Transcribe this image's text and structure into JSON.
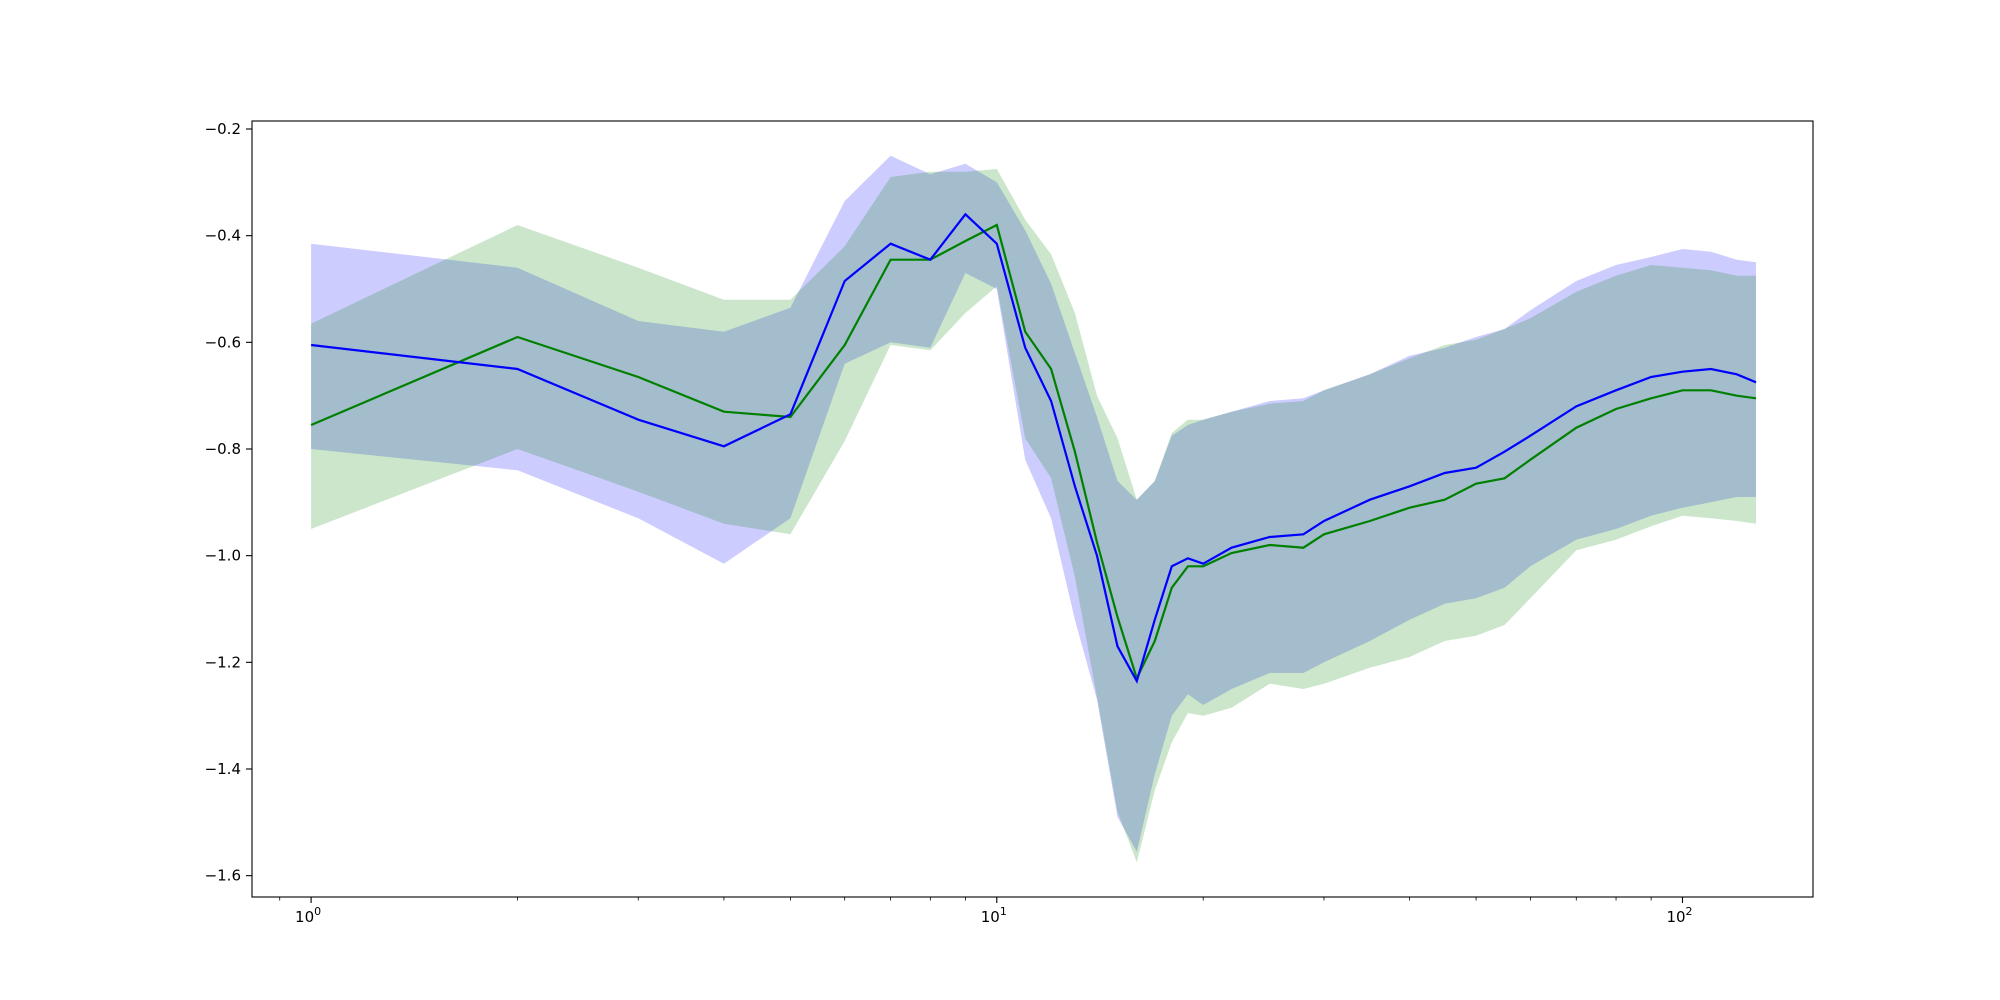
{
  "chart_data": {
    "type": "line",
    "title": "",
    "xlabel": "",
    "ylabel": "",
    "xscale": "log",
    "xlim": [
      0.82,
      155
    ],
    "ylim": [
      -1.64,
      -0.185
    ],
    "grid": false,
    "legend": "none",
    "colors": {
      "blue": "#0000ff",
      "green": "#008000",
      "blue_fill": "#0000ff",
      "green_fill": "#008000",
      "fill_opacity": 0.2
    },
    "x_ticks": [
      {
        "value": 1,
        "base": "10",
        "exp": "0"
      },
      {
        "value": 10,
        "base": "10",
        "exp": "1"
      },
      {
        "value": 100,
        "base": "10",
        "exp": "2"
      }
    ],
    "y_ticks": [
      {
        "value": -0.2,
        "label": "−0.2"
      },
      {
        "value": -0.4,
        "label": "−0.4"
      },
      {
        "value": -0.6,
        "label": "−0.6"
      },
      {
        "value": -0.8,
        "label": "−0.8"
      },
      {
        "value": -1.0,
        "label": "−1.0"
      },
      {
        "value": -1.2,
        "label": "−1.2"
      },
      {
        "value": -1.4,
        "label": "−1.4"
      },
      {
        "value": -1.6,
        "label": "−1.6"
      }
    ],
    "series": [
      {
        "color": "blue",
        "x": [
          1,
          2,
          3,
          4,
          5,
          6,
          7,
          8,
          9,
          10,
          11,
          12,
          13,
          14,
          15,
          16,
          17,
          18,
          19,
          20,
          22,
          25,
          28,
          30,
          35,
          40,
          45,
          50,
          55,
          60,
          70,
          80,
          90,
          100,
          110,
          120,
          128
        ],
        "y": [
          -0.605,
          -0.65,
          -0.745,
          -0.795,
          -0.735,
          -0.485,
          -0.415,
          -0.445,
          -0.36,
          -0.415,
          -0.61,
          -0.71,
          -0.87,
          -1.0,
          -1.17,
          -1.235,
          -1.12,
          -1.02,
          -1.005,
          -1.015,
          -0.985,
          -0.965,
          -0.96,
          -0.935,
          -0.895,
          -0.87,
          -0.845,
          -0.835,
          -0.805,
          -0.775,
          -0.72,
          -0.69,
          -0.665,
          -0.655,
          -0.65,
          -0.66,
          -0.675
        ],
        "lower": [
          -0.8,
          -0.84,
          -0.93,
          -1.015,
          -0.93,
          -0.64,
          -0.6,
          -0.61,
          -0.47,
          -0.5,
          -0.82,
          -0.93,
          -1.12,
          -1.27,
          -1.49,
          -1.555,
          -1.41,
          -1.3,
          -1.26,
          -1.28,
          -1.25,
          -1.22,
          -1.22,
          -1.2,
          -1.16,
          -1.12,
          -1.09,
          -1.08,
          -1.06,
          -1.02,
          -0.97,
          -0.95,
          -0.925,
          -0.91,
          -0.9,
          -0.89,
          -0.89
        ],
        "upper": [
          -0.415,
          -0.46,
          -0.56,
          -0.58,
          -0.535,
          -0.335,
          -0.25,
          -0.285,
          -0.265,
          -0.3,
          -0.39,
          -0.49,
          -0.62,
          -0.74,
          -0.86,
          -0.895,
          -0.86,
          -0.775,
          -0.755,
          -0.745,
          -0.73,
          -0.71,
          -0.705,
          -0.69,
          -0.66,
          -0.625,
          -0.61,
          -0.59,
          -0.575,
          -0.54,
          -0.485,
          -0.455,
          -0.44,
          -0.425,
          -0.43,
          -0.445,
          -0.45
        ]
      },
      {
        "color": "green",
        "x": [
          1,
          2,
          3,
          4,
          5,
          6,
          7,
          8,
          9,
          10,
          11,
          12,
          13,
          14,
          15,
          16,
          17,
          18,
          19,
          20,
          22,
          25,
          28,
          30,
          35,
          40,
          45,
          50,
          55,
          60,
          70,
          80,
          90,
          100,
          110,
          120,
          128
        ],
        "y": [
          -0.755,
          -0.59,
          -0.665,
          -0.73,
          -0.74,
          -0.605,
          -0.445,
          -0.445,
          -0.41,
          -0.38,
          -0.58,
          -0.65,
          -0.805,
          -0.975,
          -1.115,
          -1.23,
          -1.16,
          -1.06,
          -1.02,
          -1.02,
          -0.995,
          -0.98,
          -0.985,
          -0.96,
          -0.935,
          -0.91,
          -0.895,
          -0.865,
          -0.855,
          -0.82,
          -0.76,
          -0.725,
          -0.705,
          -0.69,
          -0.69,
          -0.7,
          -0.705
        ],
        "lower": [
          -0.95,
          -0.8,
          -0.88,
          -0.94,
          -0.96,
          -0.785,
          -0.605,
          -0.615,
          -0.545,
          -0.495,
          -0.78,
          -0.855,
          -1.04,
          -1.265,
          -1.48,
          -1.575,
          -1.44,
          -1.35,
          -1.295,
          -1.3,
          -1.285,
          -1.24,
          -1.25,
          -1.24,
          -1.21,
          -1.19,
          -1.16,
          -1.15,
          -1.13,
          -1.08,
          -0.99,
          -0.97,
          -0.945,
          -0.925,
          -0.93,
          -0.935,
          -0.94
        ],
        "upper": [
          -0.565,
          -0.38,
          -0.46,
          -0.52,
          -0.52,
          -0.42,
          -0.29,
          -0.28,
          -0.28,
          -0.275,
          -0.37,
          -0.435,
          -0.545,
          -0.7,
          -0.78,
          -0.895,
          -0.86,
          -0.77,
          -0.745,
          -0.745,
          -0.73,
          -0.715,
          -0.71,
          -0.69,
          -0.66,
          -0.63,
          -0.605,
          -0.595,
          -0.575,
          -0.555,
          -0.505,
          -0.475,
          -0.455,
          -0.46,
          -0.465,
          -0.475,
          -0.475
        ]
      }
    ]
  }
}
